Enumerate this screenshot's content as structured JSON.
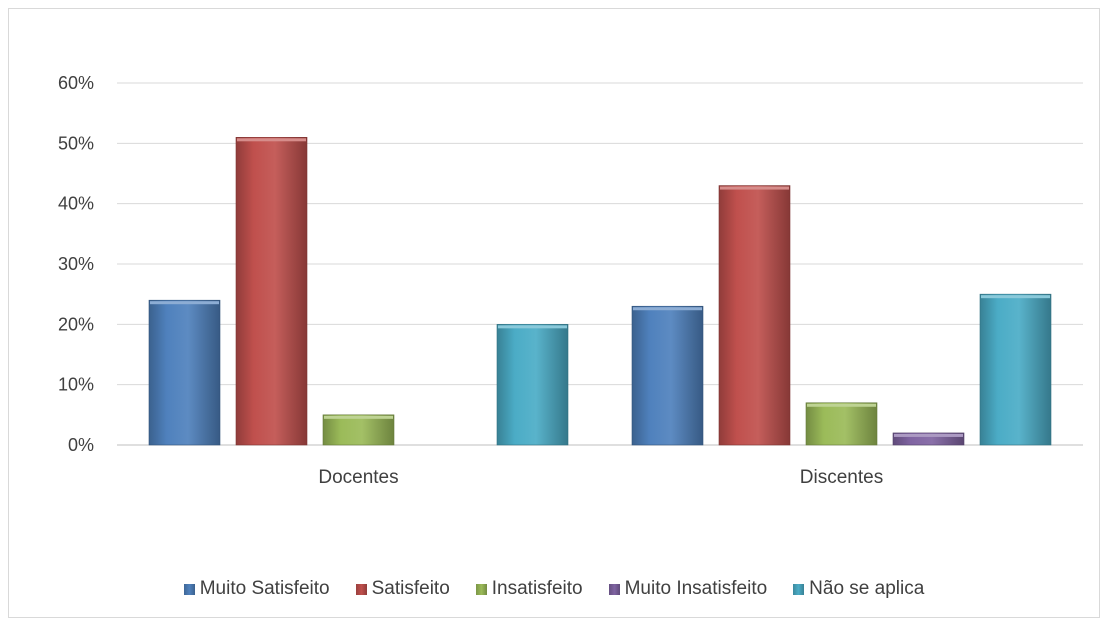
{
  "chart_data": {
    "type": "bar",
    "categories": [
      "Docentes",
      "Discentes"
    ],
    "series": [
      {
        "name": "Muito Satisfeito",
        "color": "#4f81bd",
        "values": [
          24,
          23
        ]
      },
      {
        "name": "Satisfeito",
        "color": "#c0504d",
        "values": [
          51,
          43
        ]
      },
      {
        "name": "Insatisfeito",
        "color": "#9bbb59",
        "values": [
          5,
          7
        ]
      },
      {
        "name": "Muito Insatisfeito",
        "color": "#8064a2",
        "values": [
          0,
          2
        ]
      },
      {
        "name": "Não se aplica",
        "color": "#4bacc6",
        "values": [
          20,
          25
        ]
      }
    ],
    "ylim": [
      0,
      60
    ],
    "yticks": [
      "0%",
      "10%",
      "20%",
      "30%",
      "40%",
      "50%",
      "60%"
    ],
    "ytick_values": [
      0,
      10,
      20,
      30,
      40,
      50,
      60
    ],
    "grid": true,
    "legend_position": "bottom",
    "title": "",
    "xlabel": "",
    "ylabel": ""
  }
}
